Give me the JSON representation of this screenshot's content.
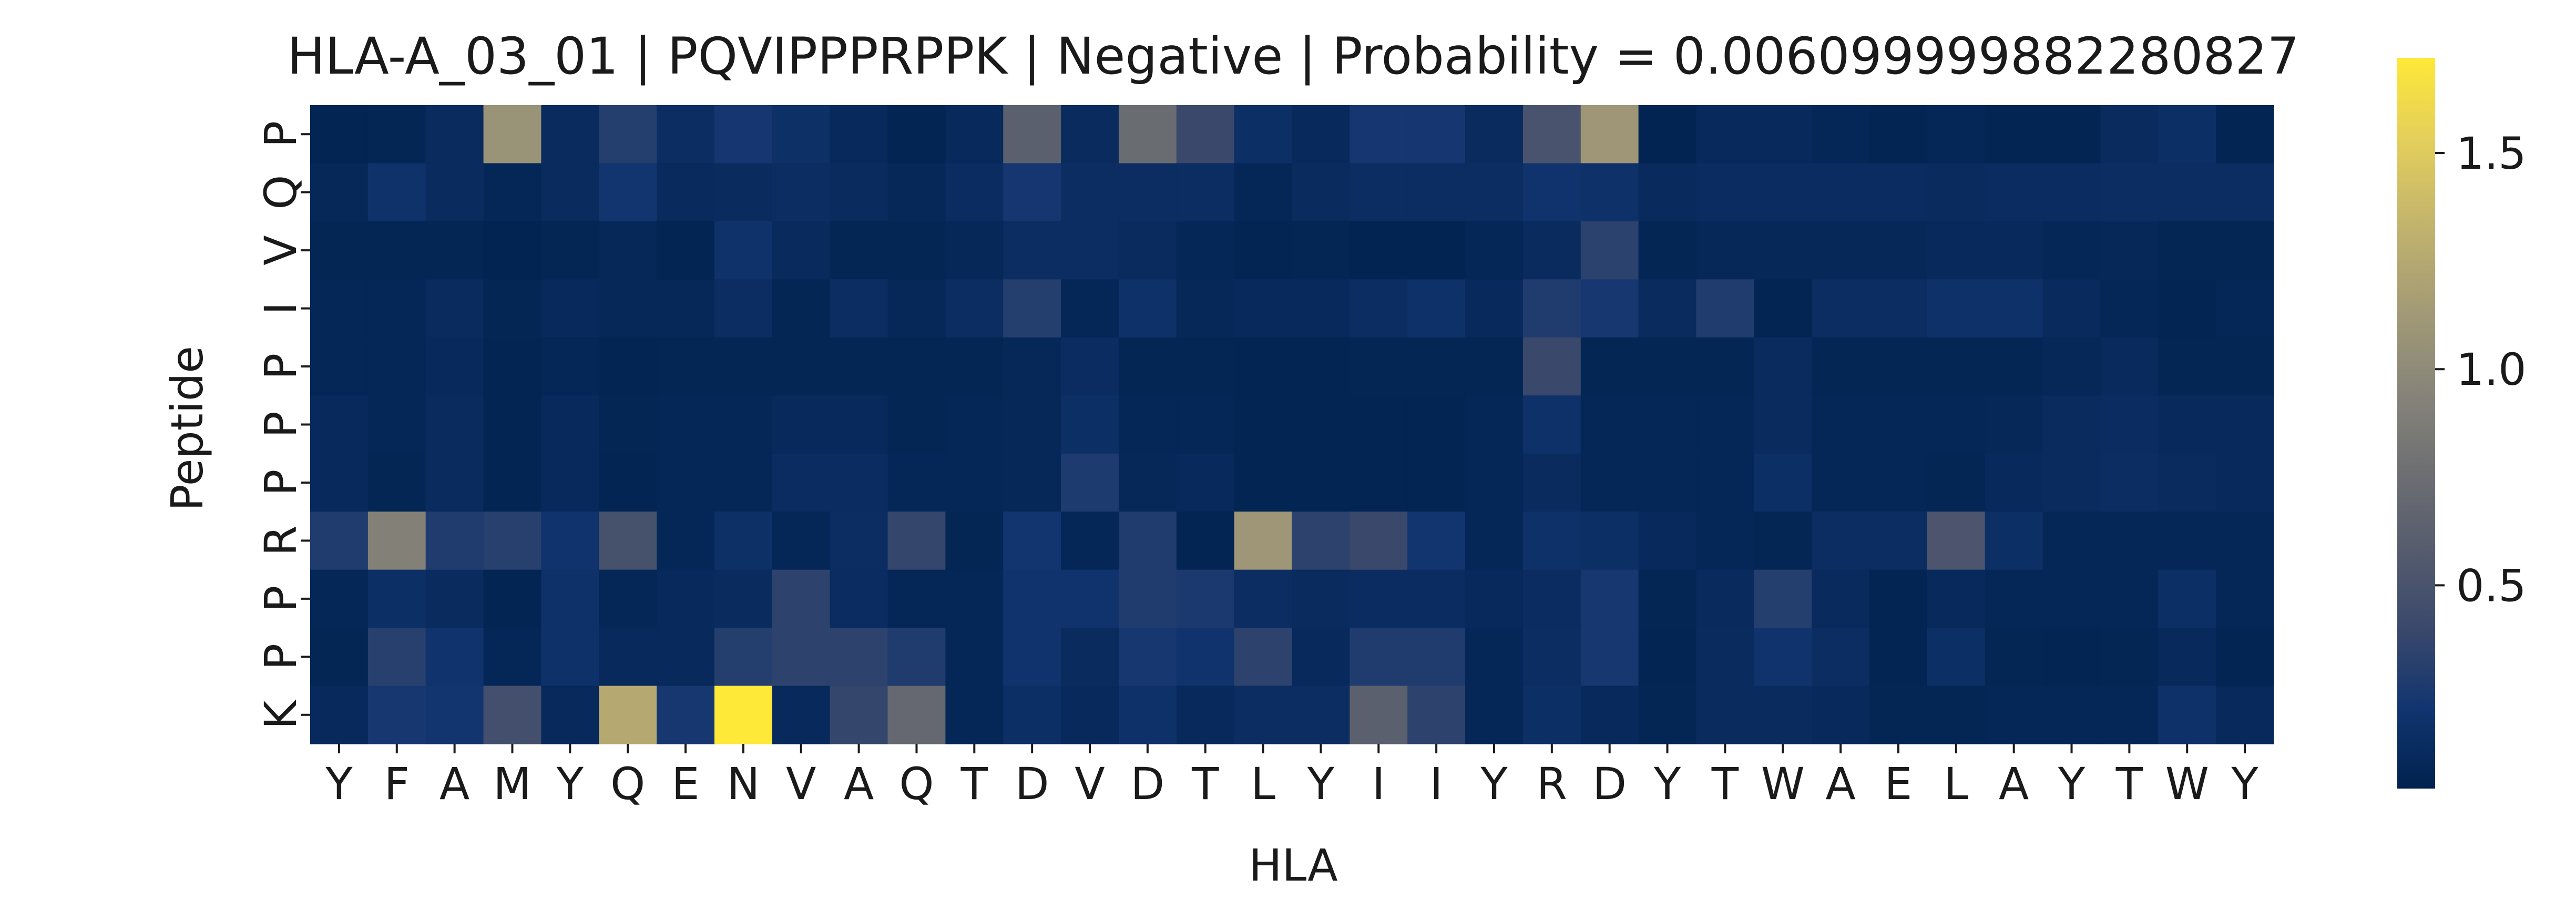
{
  "chart_data": {
    "type": "heatmap",
    "title": "HLA-A_03_01 | PQVIPPPRPPK | Negative | Probability = 0.006099999882280827",
    "xlabel": "HLA",
    "ylabel": "Peptide",
    "x_categories": [
      "Y",
      "F",
      "A",
      "M",
      "Y",
      "Q",
      "E",
      "N",
      "V",
      "A",
      "Q",
      "T",
      "D",
      "V",
      "D",
      "T",
      "L",
      "Y",
      "I",
      "I",
      "Y",
      "R",
      "D",
      "Y",
      "T",
      "W",
      "A",
      "E",
      "L",
      "A",
      "Y",
      "T",
      "W",
      "Y"
    ],
    "y_categories": [
      "P",
      "Q",
      "V",
      "I",
      "P",
      "P",
      "P",
      "R",
      "P",
      "P",
      "K"
    ],
    "values": [
      [
        0.06,
        0.07,
        0.12,
        1.07,
        0.12,
        0.3,
        0.14,
        0.23,
        0.17,
        0.1,
        0.06,
        0.1,
        0.62,
        0.12,
        0.73,
        0.4,
        0.16,
        0.1,
        0.23,
        0.23,
        0.12,
        0.5,
        1.1,
        0.05,
        0.1,
        0.1,
        0.08,
        0.06,
        0.08,
        0.06,
        0.06,
        0.12,
        0.16,
        0.06
      ],
      [
        0.09,
        0.19,
        0.12,
        0.08,
        0.12,
        0.22,
        0.11,
        0.12,
        0.14,
        0.12,
        0.09,
        0.13,
        0.23,
        0.14,
        0.14,
        0.14,
        0.08,
        0.12,
        0.14,
        0.14,
        0.14,
        0.2,
        0.18,
        0.11,
        0.13,
        0.13,
        0.13,
        0.13,
        0.12,
        0.13,
        0.13,
        0.14,
        0.14,
        0.14
      ],
      [
        0.07,
        0.07,
        0.07,
        0.05,
        0.07,
        0.09,
        0.06,
        0.19,
        0.11,
        0.07,
        0.07,
        0.09,
        0.14,
        0.14,
        0.12,
        0.08,
        0.06,
        0.07,
        0.05,
        0.05,
        0.08,
        0.12,
        0.33,
        0.07,
        0.09,
        0.09,
        0.09,
        0.09,
        0.1,
        0.1,
        0.08,
        0.09,
        0.07,
        0.07
      ],
      [
        0.08,
        0.08,
        0.12,
        0.07,
        0.1,
        0.09,
        0.09,
        0.14,
        0.07,
        0.14,
        0.09,
        0.14,
        0.3,
        0.08,
        0.18,
        0.09,
        0.1,
        0.1,
        0.14,
        0.18,
        0.1,
        0.28,
        0.24,
        0.12,
        0.28,
        0.06,
        0.14,
        0.14,
        0.18,
        0.18,
        0.11,
        0.08,
        0.06,
        0.08
      ],
      [
        0.08,
        0.08,
        0.1,
        0.06,
        0.08,
        0.06,
        0.07,
        0.07,
        0.07,
        0.07,
        0.07,
        0.07,
        0.09,
        0.13,
        0.07,
        0.07,
        0.06,
        0.06,
        0.07,
        0.07,
        0.07,
        0.4,
        0.07,
        0.07,
        0.07,
        0.12,
        0.07,
        0.07,
        0.07,
        0.07,
        0.09,
        0.11,
        0.07,
        0.07
      ],
      [
        0.1,
        0.08,
        0.12,
        0.06,
        0.1,
        0.07,
        0.08,
        0.08,
        0.1,
        0.1,
        0.07,
        0.08,
        0.09,
        0.16,
        0.08,
        0.08,
        0.06,
        0.06,
        0.06,
        0.06,
        0.08,
        0.18,
        0.08,
        0.08,
        0.08,
        0.12,
        0.08,
        0.08,
        0.08,
        0.09,
        0.12,
        0.13,
        0.1,
        0.1
      ],
      [
        0.1,
        0.07,
        0.12,
        0.06,
        0.1,
        0.06,
        0.08,
        0.08,
        0.13,
        0.13,
        0.08,
        0.08,
        0.09,
        0.27,
        0.09,
        0.1,
        0.06,
        0.06,
        0.06,
        0.06,
        0.08,
        0.12,
        0.08,
        0.08,
        0.08,
        0.16,
        0.08,
        0.08,
        0.07,
        0.1,
        0.12,
        0.14,
        0.12,
        0.1
      ],
      [
        0.28,
        0.92,
        0.28,
        0.32,
        0.2,
        0.48,
        0.08,
        0.17,
        0.08,
        0.14,
        0.38,
        0.07,
        0.22,
        0.08,
        0.28,
        0.06,
        1.1,
        0.34,
        0.4,
        0.22,
        0.08,
        0.18,
        0.16,
        0.1,
        0.08,
        0.07,
        0.14,
        0.14,
        0.52,
        0.16,
        0.08,
        0.08,
        0.08,
        0.08
      ],
      [
        0.08,
        0.16,
        0.12,
        0.06,
        0.18,
        0.08,
        0.1,
        0.12,
        0.34,
        0.13,
        0.08,
        0.08,
        0.2,
        0.2,
        0.28,
        0.26,
        0.14,
        0.12,
        0.13,
        0.13,
        0.1,
        0.13,
        0.24,
        0.07,
        0.11,
        0.3,
        0.11,
        0.06,
        0.1,
        0.08,
        0.08,
        0.08,
        0.16,
        0.08
      ],
      [
        0.07,
        0.32,
        0.2,
        0.08,
        0.18,
        0.1,
        0.1,
        0.3,
        0.34,
        0.34,
        0.28,
        0.08,
        0.2,
        0.12,
        0.24,
        0.2,
        0.34,
        0.1,
        0.28,
        0.28,
        0.08,
        0.14,
        0.24,
        0.06,
        0.12,
        0.2,
        0.14,
        0.06,
        0.16,
        0.07,
        0.06,
        0.07,
        0.1,
        0.06
      ],
      [
        0.1,
        0.24,
        0.22,
        0.46,
        0.1,
        1.25,
        0.24,
        1.72,
        0.1,
        0.38,
        0.7,
        0.08,
        0.16,
        0.1,
        0.18,
        0.1,
        0.14,
        0.14,
        0.62,
        0.34,
        0.08,
        0.16,
        0.1,
        0.07,
        0.12,
        0.12,
        0.1,
        0.07,
        0.07,
        0.08,
        0.08,
        0.08,
        0.18,
        0.1
      ]
    ],
    "vmin": 0.03,
    "vmax": 1.72,
    "colorbar_ticks": [
      0.5,
      1.0,
      1.5
    ],
    "colorbar_tick_labels": [
      "0.5",
      "1.0",
      "1.5"
    ],
    "colormap": "cividis",
    "colormap_stops": [
      "#00224e",
      "#123570",
      "#3b496c",
      "#575d6d",
      "#707173",
      "#8a8779",
      "#a69d75",
      "#c4b56c",
      "#e4cf5b",
      "#fee838"
    ],
    "legend": "colorbar-right",
    "grid": false
  }
}
